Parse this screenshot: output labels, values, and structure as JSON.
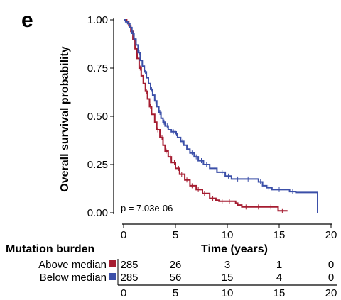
{
  "panel_label": "e",
  "colors": {
    "above": "#a51c30",
    "below": "#3b4fa8"
  },
  "chart_data": {
    "type": "line",
    "subtype": "kaplan-meier",
    "title": "",
    "xlabel": "Time (years)",
    "ylabel": "Overall survival probability",
    "xlim": [
      0,
      20
    ],
    "ylim": [
      0,
      1
    ],
    "x_ticks": [
      "0",
      "5",
      "10",
      "15",
      "20"
    ],
    "y_ticks": [
      "0.00",
      "0.25",
      "0.50",
      "0.75",
      "1.00"
    ],
    "annotation": "p = 7.03e-06",
    "legend": "risk-table",
    "series": [
      {
        "name": "Above median",
        "color": "#a51c30",
        "steps": [
          [
            0,
            1.0
          ],
          [
            0.3,
            0.99
          ],
          [
            0.5,
            0.97
          ],
          [
            0.7,
            0.94
          ],
          [
            0.9,
            0.9
          ],
          [
            1.1,
            0.85
          ],
          [
            1.3,
            0.8
          ],
          [
            1.5,
            0.75
          ],
          [
            1.7,
            0.71
          ],
          [
            1.9,
            0.67
          ],
          [
            2.1,
            0.63
          ],
          [
            2.3,
            0.59
          ],
          [
            2.5,
            0.55
          ],
          [
            2.7,
            0.51
          ],
          [
            3.0,
            0.47
          ],
          [
            3.2,
            0.43
          ],
          [
            3.5,
            0.39
          ],
          [
            3.8,
            0.35
          ],
          [
            4.0,
            0.32
          ],
          [
            4.3,
            0.29
          ],
          [
            4.6,
            0.26
          ],
          [
            5.0,
            0.23
          ],
          [
            5.4,
            0.2
          ],
          [
            5.9,
            0.17
          ],
          [
            6.4,
            0.14
          ],
          [
            7.0,
            0.12
          ],
          [
            7.6,
            0.1
          ],
          [
            8.3,
            0.075
          ],
          [
            8.9,
            0.065
          ],
          [
            9.2,
            0.06
          ],
          [
            10.4,
            0.06
          ],
          [
            10.8,
            0.05
          ],
          [
            11.0,
            0.04
          ],
          [
            11.4,
            0.03
          ],
          [
            14.7,
            0.03
          ],
          [
            14.9,
            0.01
          ],
          [
            15.8,
            0.01
          ]
        ],
        "censored_x": [
          1.0,
          1.6,
          2.2,
          2.6,
          3.3,
          3.7,
          4.1,
          4.5,
          4.9,
          5.3,
          5.6,
          6.1,
          6.6,
          7.2,
          7.8,
          8.6,
          9.5,
          10.2,
          11.8,
          13.0,
          14.2,
          15.3
        ]
      },
      {
        "name": "Below median",
        "color": "#3b4fa8",
        "steps": [
          [
            0,
            1.0
          ],
          [
            0.2,
            0.99
          ],
          [
            0.4,
            0.98
          ],
          [
            0.6,
            0.96
          ],
          [
            0.8,
            0.93
          ],
          [
            1.0,
            0.9
          ],
          [
            1.2,
            0.87
          ],
          [
            1.4,
            0.83
          ],
          [
            1.6,
            0.79
          ],
          [
            1.8,
            0.76
          ],
          [
            2.0,
            0.73
          ],
          [
            2.2,
            0.7
          ],
          [
            2.4,
            0.67
          ],
          [
            2.6,
            0.64
          ],
          [
            2.8,
            0.61
          ],
          [
            3.0,
            0.58
          ],
          [
            3.2,
            0.55
          ],
          [
            3.4,
            0.52
          ],
          [
            3.6,
            0.49
          ],
          [
            3.8,
            0.47
          ],
          [
            4.0,
            0.45
          ],
          [
            4.3,
            0.43
          ],
          [
            4.6,
            0.42
          ],
          [
            5.0,
            0.41
          ],
          [
            5.2,
            0.39
          ],
          [
            5.5,
            0.37
          ],
          [
            5.8,
            0.35
          ],
          [
            6.1,
            0.33
          ],
          [
            6.4,
            0.31
          ],
          [
            6.8,
            0.29
          ],
          [
            7.2,
            0.27
          ],
          [
            7.7,
            0.25
          ],
          [
            8.3,
            0.23
          ],
          [
            9.0,
            0.21
          ],
          [
            9.8,
            0.19
          ],
          [
            10.4,
            0.175
          ],
          [
            12.8,
            0.175
          ],
          [
            13.0,
            0.16
          ],
          [
            13.4,
            0.14
          ],
          [
            13.8,
            0.13
          ],
          [
            14.3,
            0.12
          ],
          [
            16.0,
            0.11
          ],
          [
            16.6,
            0.105
          ],
          [
            18.6,
            0.105
          ],
          [
            18.7,
            0.0
          ]
        ],
        "censored_x": [
          0.9,
          1.5,
          2.1,
          2.7,
          3.1,
          3.5,
          3.9,
          4.2,
          4.8,
          5.1,
          5.7,
          6.2,
          6.6,
          7.0,
          7.5,
          8.0,
          8.8,
          9.5,
          10.1,
          11.0,
          12.0,
          13.2,
          14.0,
          15.0,
          16.3,
          17.5
        ]
      }
    ]
  },
  "risk_table": {
    "title": "Mutation burden",
    "times": [
      0,
      5,
      10,
      15,
      20
    ],
    "axis_ticks": [
      "0",
      "5",
      "10",
      "15",
      "20"
    ],
    "rows": [
      {
        "label": "Above median",
        "color": "#a51c30",
        "counts": [
          "285",
          "26",
          "3",
          "1",
          "0"
        ]
      },
      {
        "label": "Below median",
        "color": "#3b4fa8",
        "counts": [
          "285",
          "56",
          "15",
          "4",
          "0"
        ]
      }
    ]
  }
}
